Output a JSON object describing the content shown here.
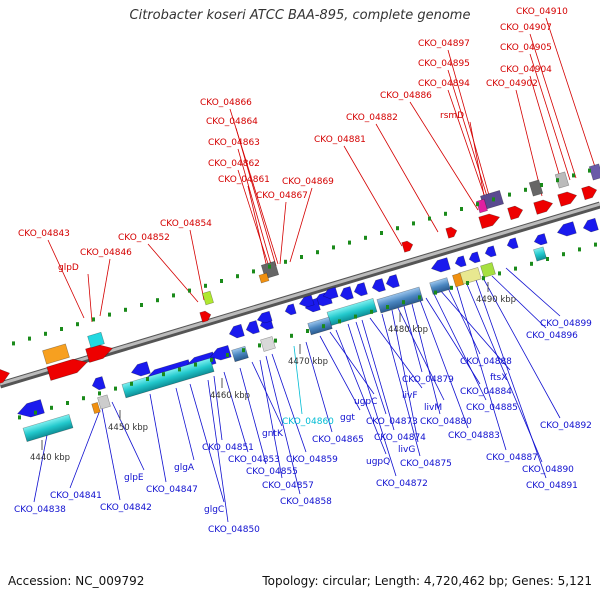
{
  "title": "Citrobacter koseri ATCC BAA-895, complete genome",
  "footer": {
    "accession": "Accession: NC_009792",
    "summary": "Topology: circular; Length: 4,720,462 bp; Genes: 5,121"
  },
  "colors": {
    "label_top": "#d40000",
    "label_bottom": "#1010d0",
    "label_highlight": "#00bcd4",
    "backbone": "#888888",
    "forward_gene": "#ee0000",
    "reverse_gene": "#1a1aee",
    "operon_cyan": "#22c8cc",
    "operon_blue": "#4a86c0",
    "tick_green": "#1a8a1a"
  },
  "scale_ticks": [
    {
      "label": "4440 kbp"
    },
    {
      "label": "4450 kbp"
    },
    {
      "label": "4460 kbp"
    },
    {
      "label": "4470 kbp"
    },
    {
      "label": "4480 kbp"
    },
    {
      "label": "4490 kbp"
    }
  ],
  "top_labels": [
    "CKO_04843",
    "glpD",
    "CKO_04846",
    "CKO_04852",
    "CKO_04854",
    "CKO_04861",
    "CKO_04862",
    "CKO_04863",
    "CKO_04864",
    "CKO_04866",
    "CKO_04867",
    "CKO_04869",
    "CKO_04881",
    "CKO_04882",
    "CKO_04886",
    "rsmD",
    "CKO_04894",
    "CKO_04895",
    "CKO_04897",
    "CKO_04902",
    "CKO_04904",
    "CKO_04905",
    "CKO_04907",
    "CKO_04910"
  ],
  "bottom_labels": [
    "CKO_04838",
    "CKO_04841",
    "CKO_04842",
    "glpE",
    "CKO_04847",
    "glgA",
    "glgC",
    "CKO_04850",
    "CKO_04851",
    "CKO_04853",
    "CKO_04855",
    "gntK",
    "CKO_04857",
    "CKO_04858",
    "CKO_04859",
    "CKO_04860",
    "CKO_04865",
    "ggt",
    "ugpC",
    "ugpQ",
    "CKO_04872",
    "CKO_04873",
    "CKO_04874",
    "livF",
    "CKO_04875",
    "livG",
    "livM",
    "CKO_04879",
    "CKO_04880",
    "CKO_04883",
    "CKO_04884",
    "CKO_04885",
    "ftsX",
    "CKO_04888",
    "CKO_04887",
    "CKO_04890",
    "CKO_04891",
    "CKO_04892",
    "CKO_04896",
    "CKO_04899"
  ],
  "highlighted_label": "CKO_04860"
}
